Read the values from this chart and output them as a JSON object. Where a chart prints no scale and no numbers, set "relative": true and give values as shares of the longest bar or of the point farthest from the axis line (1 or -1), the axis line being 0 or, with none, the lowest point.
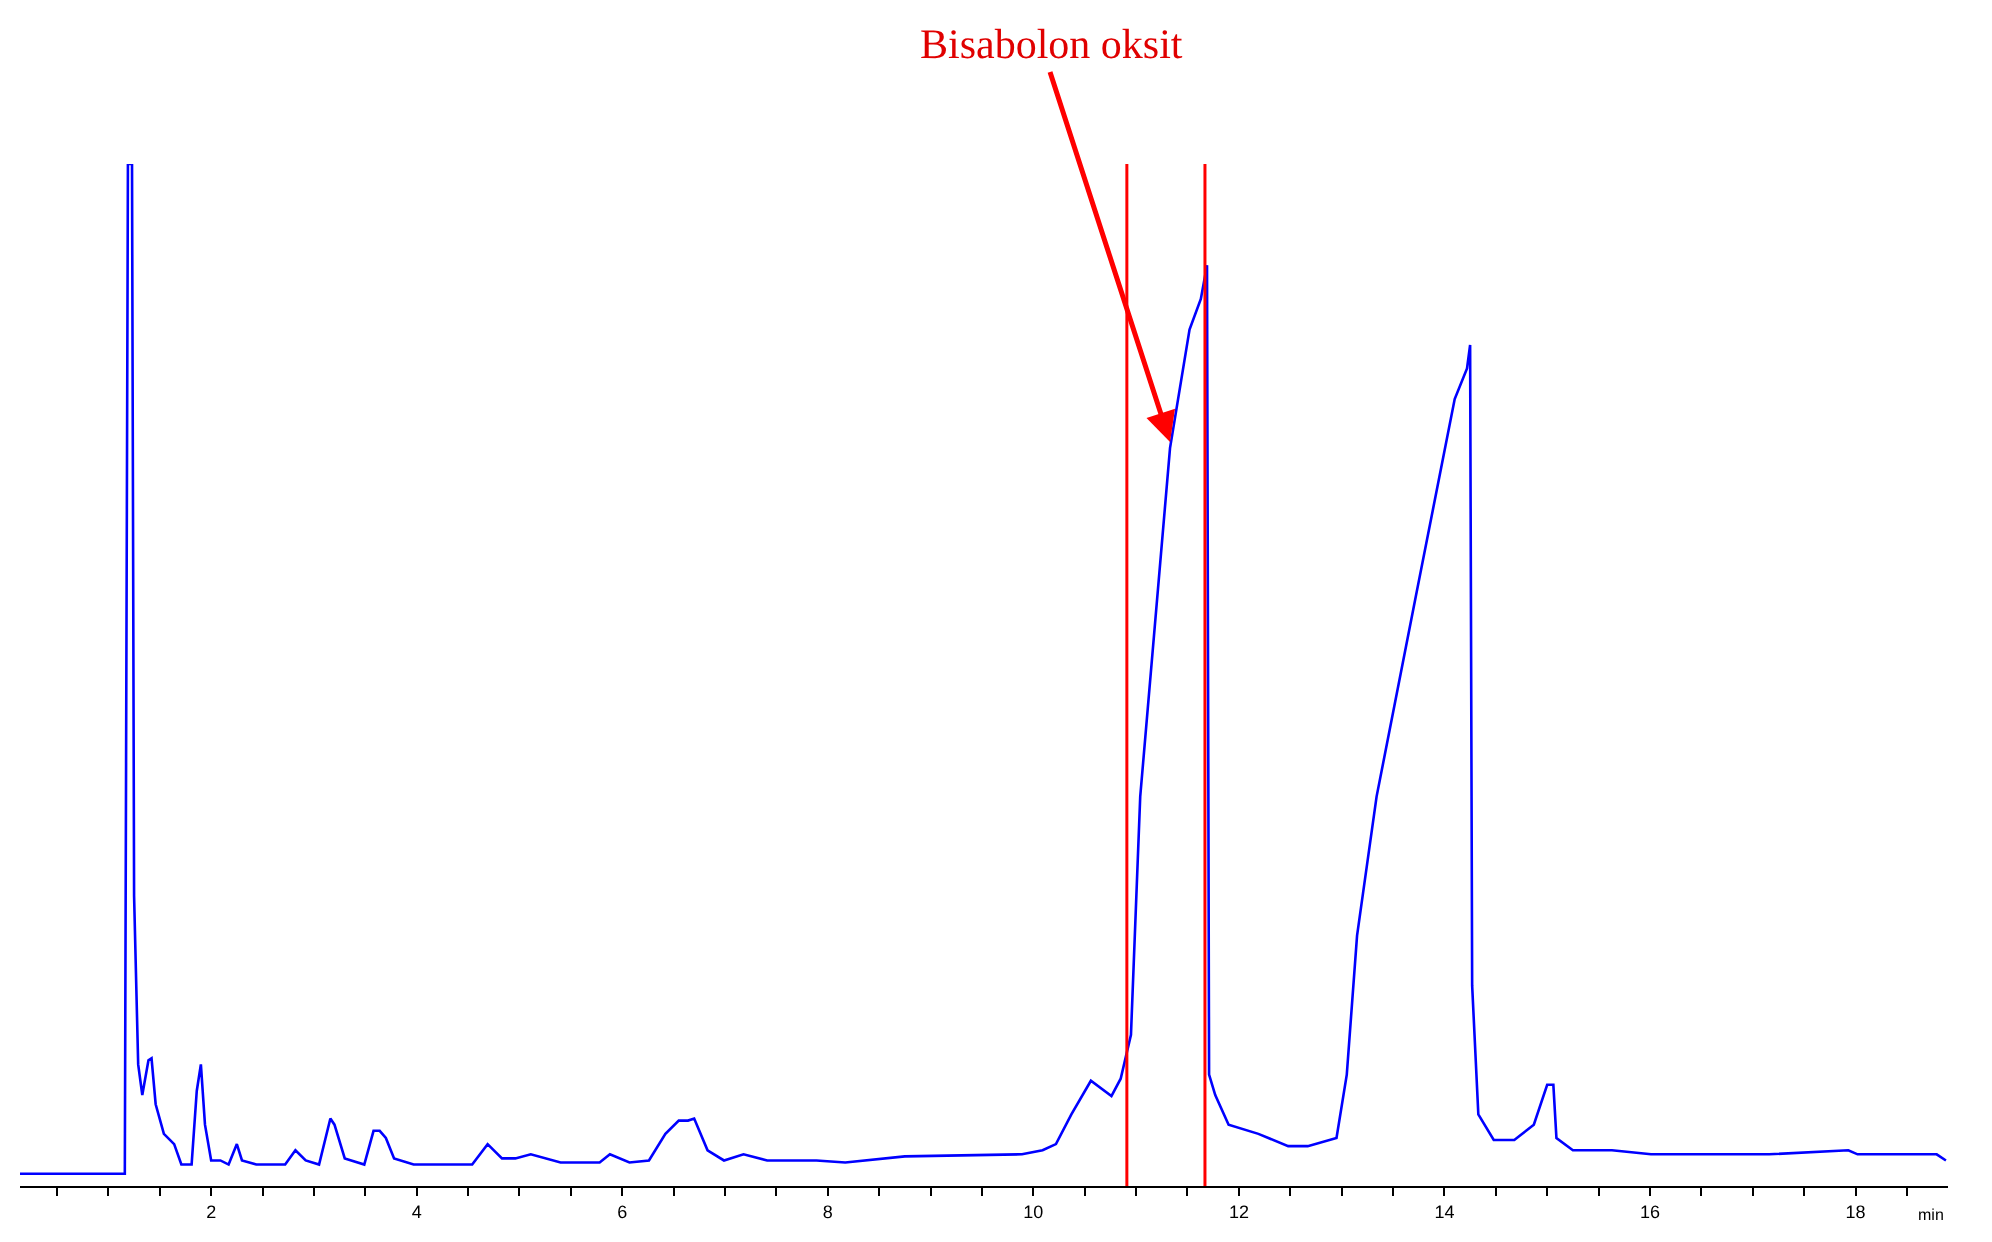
{
  "chart_data": {
    "type": "line",
    "relative": true,
    "xlabel": "min",
    "xlim": [
      0.14,
      18.9
    ],
    "xticks": [
      {
        "value": 0.5,
        "label": null
      },
      {
        "value": 1,
        "label": null
      },
      {
        "value": 1.5,
        "label": null
      },
      2,
      {
        "value": 2.5,
        "label": null
      },
      {
        "value": 3,
        "label": null
      },
      {
        "value": 3.5,
        "label": null
      },
      4,
      {
        "value": 4.5,
        "label": null
      },
      {
        "value": 5,
        "label": null
      },
      {
        "value": 5.5,
        "label": null
      },
      6,
      {
        "value": 6.5,
        "label": null
      },
      {
        "value": 7,
        "label": null
      },
      {
        "value": 7.5,
        "label": null
      },
      8,
      {
        "value": 8.5,
        "label": null
      },
      {
        "value": 9,
        "label": null
      },
      {
        "value": 9.5,
        "label": null
      },
      10,
      {
        "value": 10.5,
        "label": null
      },
      {
        "value": 11,
        "label": null
      },
      {
        "value": 11.5,
        "label": null
      },
      12,
      {
        "value": 12.5,
        "label": null
      },
      {
        "value": 13,
        "label": null
      },
      {
        "value": 13.5,
        "label": null
      },
      14,
      {
        "value": 14.5,
        "label": null
      },
      {
        "value": 15,
        "label": null
      },
      {
        "value": 15.5,
        "label": null
      },
      16,
      {
        "value": 16.5,
        "label": null
      },
      {
        "value": 17,
        "label": null
      },
      {
        "value": 17.5,
        "label": null
      },
      18,
      {
        "value": 18.5,
        "label": null
      }
    ],
    "marker": "none",
    "line_style": "solid",
    "tick_labels": "x",
    "series": [
      {
        "color": "#0000ff",
        "x": [
          0.14,
          1.16,
          1.19,
          1.23,
          1.25,
          1.29,
          1.33,
          1.39,
          1.42,
          1.46,
          1.54,
          1.64,
          1.71,
          1.81,
          1.86,
          1.9,
          1.94,
          2.0,
          2.09,
          2.17,
          2.25,
          2.3,
          2.44,
          2.72,
          2.82,
          2.92,
          3.05,
          3.16,
          3.2,
          3.3,
          3.49,
          3.58,
          3.64,
          3.7,
          3.78,
          3.97,
          4.54,
          4.69,
          4.83,
          4.96,
          5.11,
          5.4,
          5.78,
          5.88,
          6.07,
          6.26,
          6.42,
          6.55,
          6.64,
          6.7,
          6.83,
          6.99,
          7.18,
          7.41,
          7.89,
          8.17,
          8.75,
          9.89,
          10.09,
          10.22,
          10.37,
          10.56,
          10.76,
          10.85,
          10.95,
          11.04,
          11.33,
          11.52,
          11.63,
          11.69,
          11.71,
          11.77,
          11.9,
          12.19,
          12.48,
          12.67,
          12.95,
          13.05,
          13.15,
          13.34,
          13.72,
          14.1,
          14.22,
          14.25,
          14.27,
          14.33,
          14.48,
          14.68,
          14.87,
          15.0,
          15.06,
          15.09,
          15.25,
          15.63,
          16.01,
          17.16,
          17.93,
          18.02,
          18.79,
          18.88
        ],
        "values": [
          0.012,
          0.012,
          1.0,
          1.0,
          0.284,
          0.119,
          0.089,
          0.123,
          0.125,
          0.08,
          0.051,
          0.041,
          0.021,
          0.021,
          0.093,
          0.119,
          0.06,
          0.025,
          0.025,
          0.021,
          0.041,
          0.025,
          0.021,
          0.021,
          0.035,
          0.025,
          0.021,
          0.066,
          0.06,
          0.027,
          0.021,
          0.054,
          0.054,
          0.047,
          0.027,
          0.021,
          0.021,
          0.041,
          0.027,
          0.027,
          0.031,
          0.023,
          0.023,
          0.031,
          0.023,
          0.025,
          0.051,
          0.064,
          0.064,
          0.066,
          0.035,
          0.025,
          0.031,
          0.025,
          0.025,
          0.023,
          0.029,
          0.031,
          0.035,
          0.041,
          0.07,
          0.103,
          0.088,
          0.105,
          0.148,
          0.381,
          0.722,
          0.838,
          0.868,
          0.901,
          0.109,
          0.089,
          0.06,
          0.051,
          0.039,
          0.039,
          0.047,
          0.109,
          0.245,
          0.381,
          0.576,
          0.77,
          0.8,
          0.823,
          0.196,
          0.07,
          0.045,
          0.045,
          0.06,
          0.099,
          0.099,
          0.047,
          0.035,
          0.035,
          0.031,
          0.031,
          0.035,
          0.031,
          0.031,
          0.025
        ]
      }
    ],
    "ref_lines": [
      {
        "axis": "x",
        "value": 10.91,
        "color": "#ff0000"
      },
      {
        "axis": "x",
        "value": 11.67,
        "color": "#ff0000"
      }
    ],
    "annotations": [
      {
        "text": "Bisabolon oksit",
        "x": 11.33,
        "y": 0.728
      }
    ]
  }
}
